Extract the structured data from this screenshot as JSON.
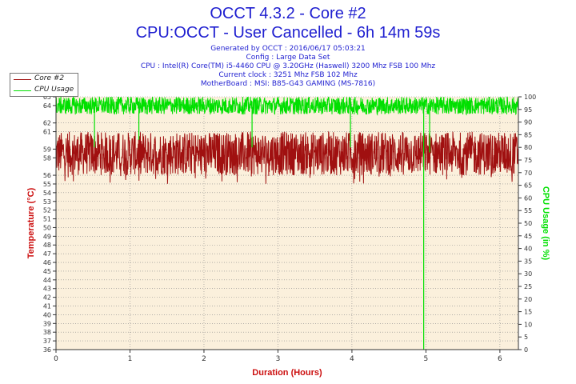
{
  "header": {
    "title": "OCCT 4.3.2 - Core #2",
    "subtitle": "CPU:OCCT - User Cancelled - 6h 14m 59s",
    "info_lines": [
      "Generated by OCCT : 2016/06/17 05:03:21",
      "Config : Large Data Set",
      "CPU : Intel(R) Core(TM) i5-4460 CPU @ 3.20GHz (Haswell) 3200 Mhz FSB 100 Mhz",
      "Current clock : 3251 Mhz FSB 102 Mhz",
      "MotherBoard : MSI: B85-G43 GAMING (MS-7816)"
    ]
  },
  "colors": {
    "temperature": "#a01010",
    "cpu_usage": "#00e000",
    "plot_background": "#fbf0dc",
    "axis_label": "#cc1010"
  },
  "chart_data": {
    "type": "line",
    "xlabel": "Duration (Hours)",
    "ylabel": "Temperature (°C)",
    "y2label": "CPU Usage (in %)",
    "xlim": [
      0,
      6.25
    ],
    "ylim": [
      36,
      65
    ],
    "y2lim": [
      0,
      100
    ],
    "x_ticks": [
      0,
      1,
      2,
      3,
      4,
      5,
      6
    ],
    "y_ticks": [
      36,
      37,
      38,
      39,
      40,
      41,
      42,
      43,
      44,
      45,
      46,
      47,
      48,
      49,
      50,
      51,
      52,
      53,
      54,
      55,
      56,
      58,
      59,
      61,
      62,
      64,
      65
    ],
    "y2_ticks": [
      0,
      5,
      10,
      15,
      20,
      25,
      30,
      35,
      40,
      45,
      50,
      55,
      60,
      65,
      70,
      75,
      80,
      85,
      90,
      95,
      100
    ],
    "grid": true,
    "legend_position": "top-left",
    "series": [
      {
        "name": "Core #2",
        "axis": "left",
        "typical_range": [
          56,
          61
        ],
        "mean": 58.5,
        "min_observed": 55
      },
      {
        "name": "CPU Usage",
        "axis": "right",
        "typical_range": [
          93,
          100
        ],
        "mean": 97,
        "dips": [
          {
            "x": 0.52,
            "value": 80
          },
          {
            "x": 1.12,
            "value": 83
          },
          {
            "x": 2.65,
            "value": 80
          },
          {
            "x": 3.98,
            "value": 80
          },
          {
            "x": 4.97,
            "value": 0
          },
          {
            "x": 5.05,
            "value": 78
          }
        ]
      }
    ]
  }
}
